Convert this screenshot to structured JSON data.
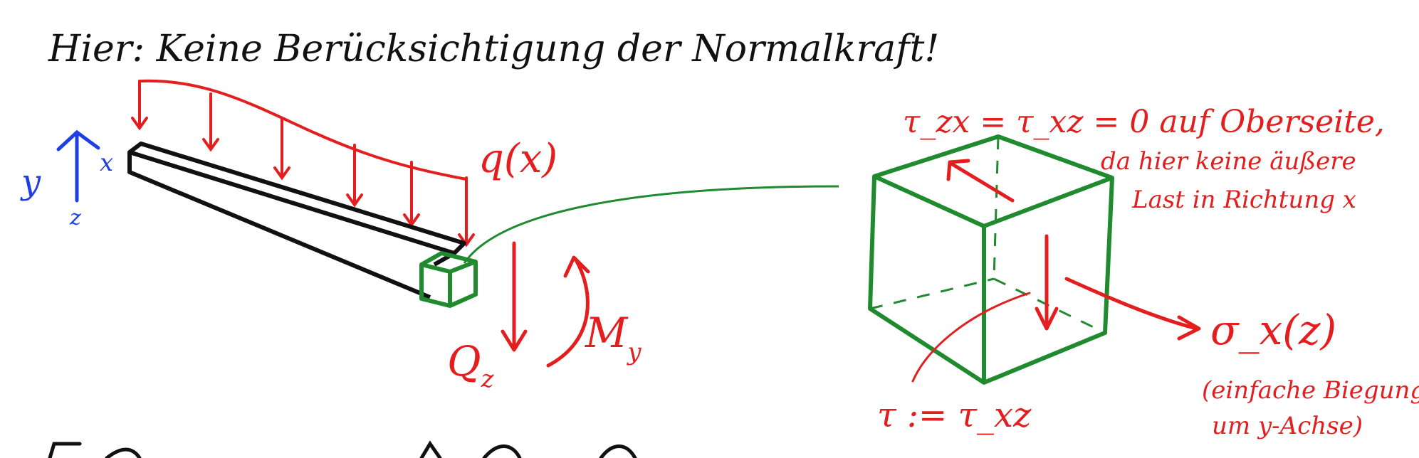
{
  "title": "Hier: Keine Berücksichtigung der Normalkraft!",
  "axes": {
    "y_label": "y",
    "x_label": "x",
    "z_label": "z"
  },
  "beam": {
    "load_label": "q(x)"
  },
  "section_loads": {
    "shear_label": "Q",
    "shear_sub": "z",
    "moment_label": "M",
    "moment_sub": "y"
  },
  "element": {
    "top_shear": "τ_zx = τ_xz = 0 auf Oberseite,",
    "note_line1": "da hier keine äußere",
    "note_line2": "Last in Richtung x",
    "sigma_label": "σ_x(z)",
    "bending_note1": "(einfache Biegung",
    "bending_note2": "um y-Achse)",
    "tau_def": "τ := τ_xz"
  },
  "colors": {
    "ink": "#111111",
    "red": "#e41e1e",
    "green": "#1f8a2e",
    "blue": "#1f3fe6"
  }
}
